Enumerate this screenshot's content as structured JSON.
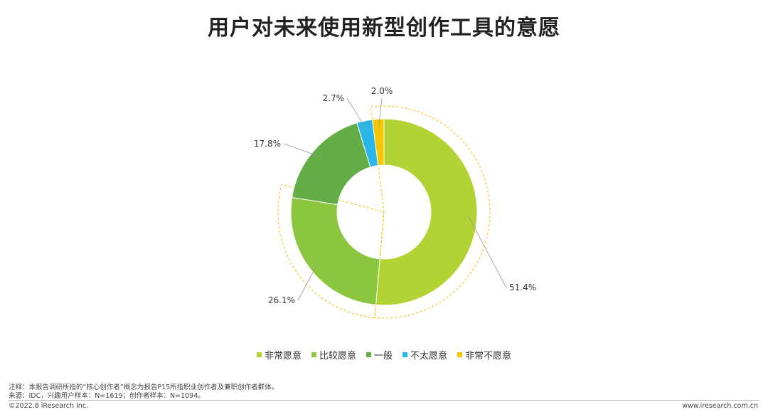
{
  "title": "用户对未来使用新型创作工具的意愿",
  "chart_data": {
    "type": "donut",
    "categories": [
      "非常愿意",
      "比较愿意",
      "一般",
      "不太愿意",
      "非常不愿意"
    ],
    "values": [
      51.4,
      26.1,
      17.8,
      2.7,
      2.0
    ],
    "value_labels": [
      "51.4%",
      "26.1%",
      "17.8%",
      "2.7%",
      "2.0%"
    ],
    "colors": [
      "#b3d234",
      "#8cc63f",
      "#63ad46",
      "#29b6e8",
      "#f7c600"
    ],
    "highlight_outline_color": "#f5c518",
    "legend_position": "bottom"
  },
  "notes": {
    "line1": "注释：本报告调研所指的“核心创作者”概念为报告P15所指职业创作者及兼职创作者群体。",
    "line2": "来源：IDC，兴趣用户样本：N=1619；创作者样本：N=1094。"
  },
  "footer": {
    "copyright": "©2022.8 iResearch Inc.",
    "site": "www.iresearch.com.cn"
  }
}
